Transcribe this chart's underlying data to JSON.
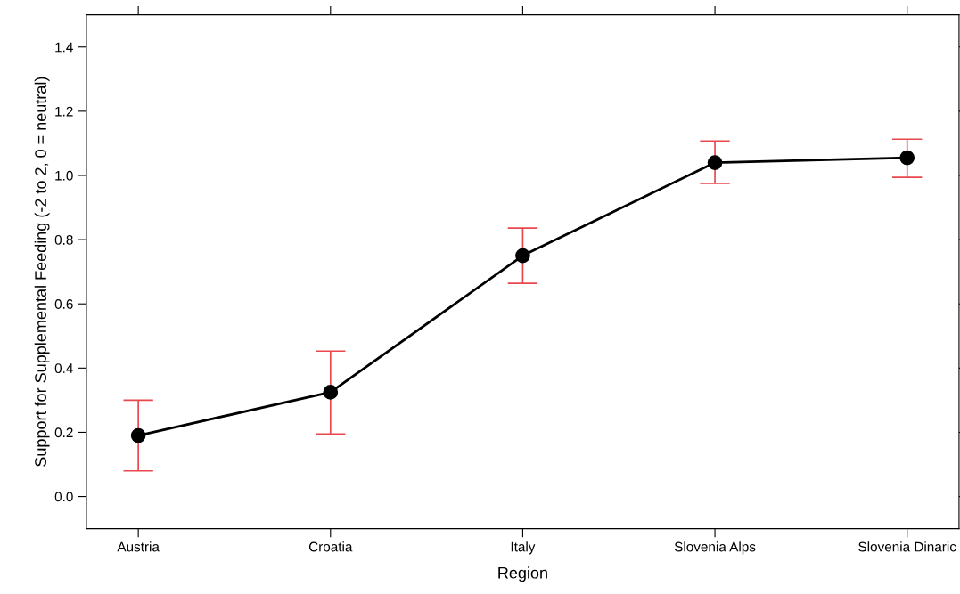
{
  "chart_data": {
    "type": "line",
    "xlabel": "Region",
    "ylabel": "Support for Supplemental Feeding (-2 to 2, 0 = neutral)",
    "categories": [
      "Austria",
      "Croatia",
      "Italy",
      "Slovenia Alps",
      "Slovenia Dinaric"
    ],
    "series": [
      {
        "color": "#000000",
        "values": [
          0.19,
          0.325,
          0.75,
          1.04,
          1.055
        ],
        "errors": [
          [
            0.08,
            0.3
          ],
          [
            0.195,
            0.453
          ],
          [
            0.664,
            0.836
          ],
          [
            0.975,
            1.107
          ],
          [
            0.994,
            1.113
          ]
        ]
      }
    ],
    "ylim": [
      -0.1,
      1.5
    ],
    "yticks": [
      {
        "value": 0,
        "label": "0.0"
      },
      0.2,
      0.4,
      0.6,
      0.8,
      {
        "value": 1,
        "label": "1.0"
      },
      1.2,
      1.4
    ],
    "marker": "circle",
    "line_style": "solid"
  }
}
